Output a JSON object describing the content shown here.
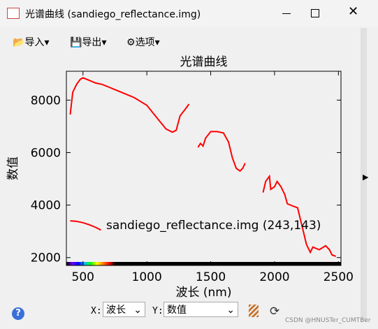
{
  "window": {
    "title": "光谱曲线 (sandiego_reflectance.img)"
  },
  "toolbar": {
    "items": [
      "导入",
      "导出",
      "选项"
    ]
  },
  "controls": {
    "x_label": "X:",
    "x_value": "波长",
    "y_label": "Y:",
    "y_value": "数值"
  },
  "watermark": "CSDN @HNUSTer_CUMTBer",
  "chart_data": {
    "type": "line",
    "title": "光谱曲线",
    "x_label": "波长 (nm)",
    "y_label": "数值",
    "annotation": "sandiego_reflectance.img (243,143)",
    "x": [
      400,
      450,
      500,
      550,
      600,
      640,
      null,
      400,
      420,
      450,
      480,
      500,
      550,
      600,
      650,
      700,
      750,
      800,
      850,
      900,
      950,
      1000,
      1050,
      1100,
      1150,
      1200,
      1230,
      1260,
      1300,
      1330,
      null,
      1400,
      1420,
      1440,
      1460,
      1500,
      1550,
      1600,
      1640,
      1670,
      1700,
      1730,
      1750,
      1770,
      null,
      1910,
      1930,
      1960,
      1970,
      2000,
      2020,
      2050,
      2080,
      2100,
      2150,
      2180,
      2220,
      2250,
      2280,
      2300,
      2350,
      2400,
      2430,
      2450,
      2480
    ],
    "series": [
      {
        "color": "#ff0000",
        "values": [
          3400,
          3380,
          3330,
          3250,
          3150,
          3050,
          null,
          7450,
          8300,
          8600,
          8800,
          8850,
          8750,
          8650,
          8600,
          8500,
          8400,
          8300,
          8200,
          8100,
          7950,
          7800,
          7500,
          7200,
          6900,
          6780,
          6850,
          7400,
          7650,
          7850,
          null,
          6200,
          6350,
          6250,
          6550,
          6800,
          6800,
          6750,
          6400,
          5800,
          5400,
          5300,
          5400,
          5600,
          null,
          4480,
          4900,
          5100,
          4600,
          4700,
          4900,
          4700,
          4400,
          4050,
          3950,
          3900,
          3100,
          2500,
          2200,
          2400,
          2300,
          2450,
          2300,
          2100,
          2050
        ]
      }
    ],
    "xlim": [
      370,
      2520
    ],
    "ylim": [
      1700,
      9100
    ],
    "xticks": [
      500,
      1000,
      1500,
      2000,
      2500
    ],
    "yticks": [
      2000,
      4000,
      6000,
      8000
    ]
  }
}
